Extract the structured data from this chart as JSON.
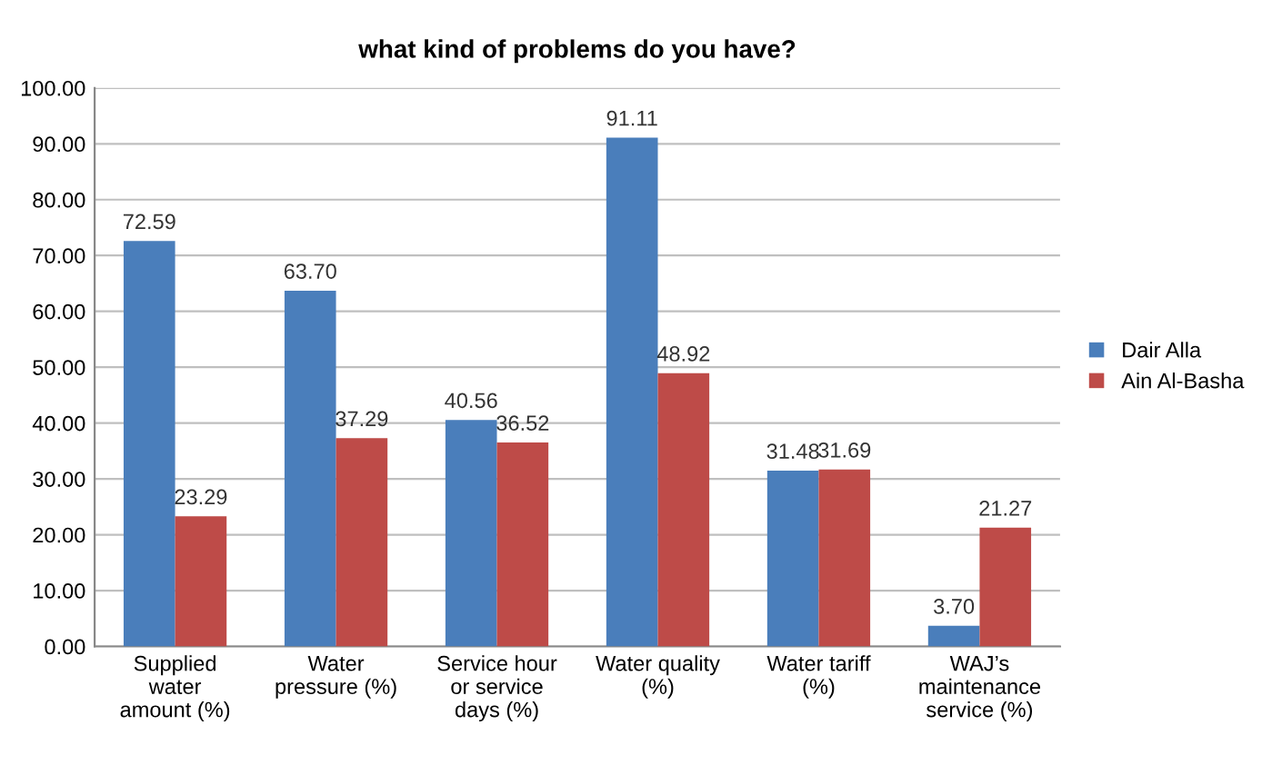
{
  "chart_data": {
    "type": "bar",
    "title": "what kind of problems do you have?",
    "categories": [
      "Supplied\nwater\namount (%)",
      "Water\npressure (%)",
      "Service hour\nor service\ndays (%)",
      "Water quality\n(%)",
      "Water tariff\n(%)",
      "WAJ’s\nmaintenance\nservice (%)"
    ],
    "series": [
      {
        "name": "Dair Alla",
        "color": "#4a7ebb",
        "values": [
          72.59,
          63.7,
          40.56,
          91.11,
          31.48,
          3.7
        ],
        "value_labels": [
          "72.59",
          "63.70",
          "40.56",
          "91.11",
          "31.48",
          "3.70"
        ]
      },
      {
        "name": "Ain Al-Basha",
        "color": "#be4b48",
        "values": [
          23.29,
          37.29,
          36.52,
          48.92,
          31.69,
          21.27
        ],
        "value_labels": [
          "23.29",
          "37.29",
          "36.52",
          "48.92",
          "31.69",
          "21.27"
        ]
      }
    ],
    "ylim": [
      0,
      100
    ],
    "yticks": [
      {
        "value": 0,
        "label": "0.00"
      },
      {
        "value": 10,
        "label": "10.00"
      },
      {
        "value": 20,
        "label": "20.00"
      },
      {
        "value": 30,
        "label": "30.00"
      },
      {
        "value": 40,
        "label": "40.00"
      },
      {
        "value": 50,
        "label": "50.00"
      },
      {
        "value": 60,
        "label": "60.00"
      },
      {
        "value": 70,
        "label": "70.00"
      },
      {
        "value": 80,
        "label": "80.00"
      },
      {
        "value": 90,
        "label": "90.00"
      },
      {
        "value": 100,
        "label": "100.00"
      }
    ],
    "grid": "y",
    "legend": "right"
  }
}
